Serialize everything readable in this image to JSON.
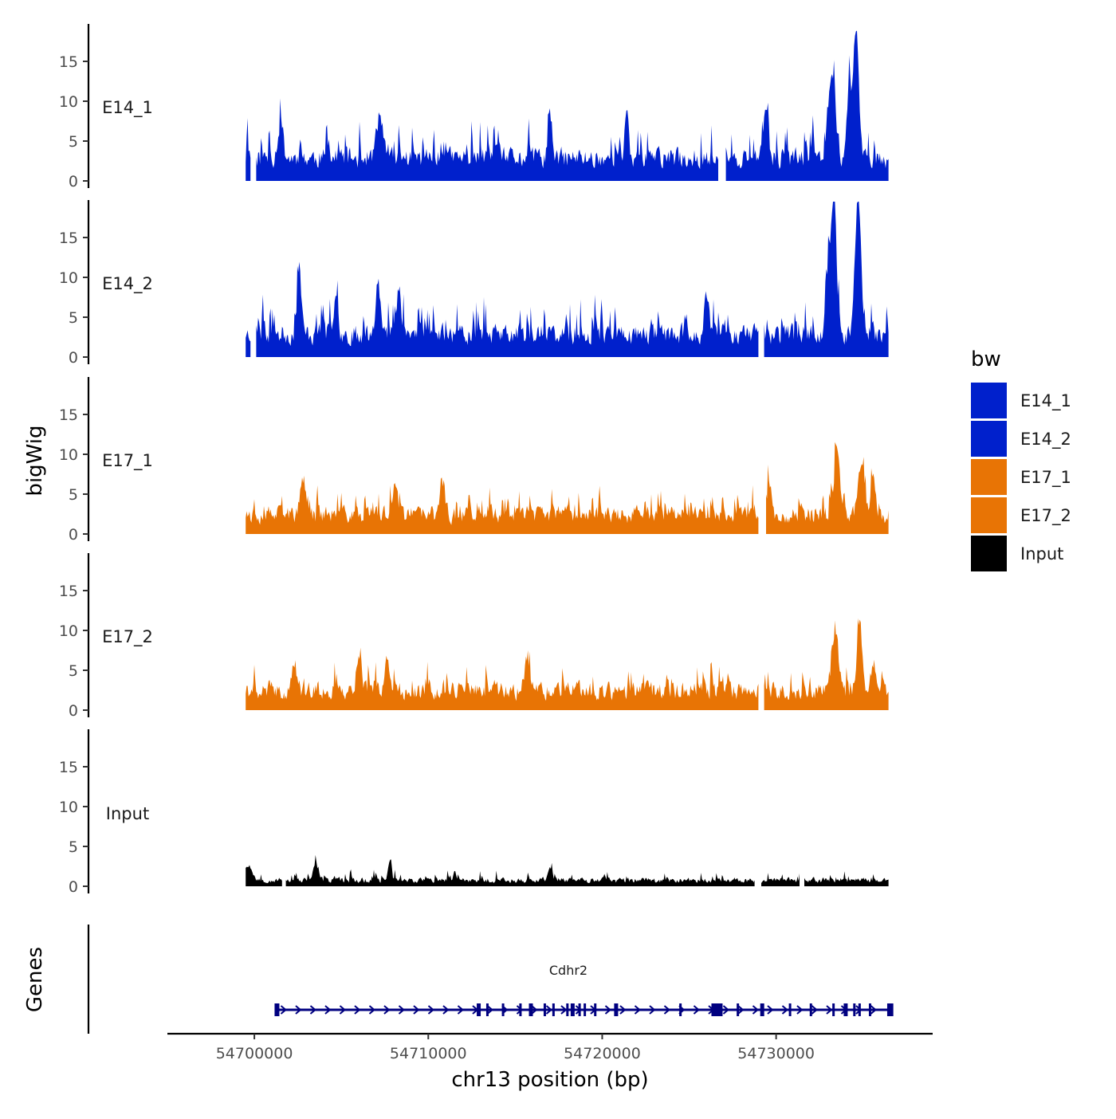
{
  "chart_data": {
    "type": "area",
    "subtype": "genome-browser-tracks",
    "xlabel": "chr13 position (bp)",
    "ylabel": "bigWig",
    "xlim": [
      54695000,
      54739000
    ],
    "ylim": [
      0,
      20
    ],
    "x_ticks": [
      54700000,
      54710000,
      54720000,
      54730000
    ],
    "x_tick_labels": [
      "54700000",
      "54710000",
      "54720000",
      "54730000"
    ],
    "y_ticks": [
      0,
      5,
      10,
      15
    ],
    "y_tick_labels": [
      "0",
      "5",
      "10",
      "15"
    ],
    "data_range": [
      54699500,
      54736500
    ],
    "legend": {
      "title": "bw",
      "position": "right",
      "entries": [
        {
          "label": "E14_1",
          "color": "#0020CC"
        },
        {
          "label": "E14_2",
          "color": "#0020CC"
        },
        {
          "label": "E17_1",
          "color": "#E87405"
        },
        {
          "label": "E17_2",
          "color": "#E87405"
        },
        {
          "label": "Input",
          "color": "#000000"
        }
      ]
    },
    "series": [
      {
        "name": "E14_1",
        "color": "#0020CC",
        "baseline": 3.2,
        "noise": 1.7,
        "seed": 11,
        "gaps": [
          [
            54699800,
            54700100
          ],
          [
            54726700,
            54727100
          ]
        ],
        "peaks": [
          [
            54733200,
            10.5,
            220
          ],
          [
            54734600,
            16.5,
            160
          ],
          [
            54734200,
            9.0,
            120
          ],
          [
            54701500,
            4.6,
            150
          ],
          [
            54707200,
            5.2,
            180
          ],
          [
            54717000,
            4.8,
            120
          ],
          [
            54721400,
            5.6,
            100
          ],
          [
            54729400,
            5.0,
            140
          ]
        ]
      },
      {
        "name": "E14_2",
        "color": "#0020CC",
        "baseline": 3.2,
        "noise": 1.8,
        "seed": 23,
        "gaps": [
          [
            54699800,
            54700100
          ],
          [
            54729000,
            54729300
          ]
        ],
        "peaks": [
          [
            54733300,
            18.5,
            150
          ],
          [
            54734700,
            17.0,
            180
          ],
          [
            54732900,
            7.0,
            120
          ],
          [
            54702600,
            8.0,
            110
          ],
          [
            54707100,
            7.6,
            130
          ],
          [
            54708300,
            6.5,
            120
          ],
          [
            54704700,
            6.2,
            110
          ],
          [
            54726000,
            5.2,
            120
          ]
        ]
      },
      {
        "name": "E17_1",
        "color": "#E87405",
        "baseline": 2.7,
        "noise": 1.2,
        "seed": 37,
        "gaps": [
          [
            54729000,
            54729400
          ]
        ],
        "peaks": [
          [
            54733500,
            8.0,
            170
          ],
          [
            54734900,
            7.2,
            160
          ],
          [
            54729600,
            4.4,
            120
          ],
          [
            54708100,
            4.5,
            140
          ],
          [
            54710800,
            4.5,
            140
          ],
          [
            54702800,
            4.3,
            150
          ],
          [
            54735600,
            4.6,
            140
          ]
        ]
      },
      {
        "name": "E17_2",
        "color": "#E87405",
        "baseline": 2.7,
        "noise": 1.3,
        "seed": 41,
        "gaps": [
          [
            54729000,
            54729300
          ]
        ],
        "peaks": [
          [
            54733400,
            7.0,
            200
          ],
          [
            54734800,
            8.7,
            150
          ],
          [
            54706000,
            4.7,
            130
          ],
          [
            54707600,
            4.5,
            120
          ],
          [
            54715700,
            4.4,
            130
          ],
          [
            54702300,
            3.2,
            140
          ],
          [
            54735600,
            3.6,
            140
          ]
        ]
      },
      {
        "name": "Input",
        "color": "#000000",
        "baseline": 0.85,
        "noise": 0.45,
        "seed": 53,
        "gaps": [
          [
            54701600,
            54701800
          ],
          [
            54728800,
            54729100
          ],
          [
            54731400,
            54731600
          ]
        ],
        "peaks": [
          [
            54707800,
            2.8,
            90
          ],
          [
            54703500,
            2.1,
            110
          ],
          [
            54699700,
            1.9,
            200
          ],
          [
            54717000,
            1.9,
            120
          ]
        ]
      }
    ],
    "gene_track": {
      "label": "Genes",
      "gene": "Cdhr2",
      "color": "#000080",
      "start": 54701300,
      "end": 54736600,
      "strand": "+",
      "exons": [
        54712900,
        54713400,
        54714300,
        54715300,
        54715900,
        54716700,
        54717200,
        54718000,
        54718300,
        54718700,
        54719000,
        54719600,
        54720800,
        54724500,
        54726600,
        54727800,
        54729200,
        54730800,
        54732000,
        54733300,
        54734000,
        54734500,
        54734800,
        54735400,
        54736500
      ]
    }
  }
}
